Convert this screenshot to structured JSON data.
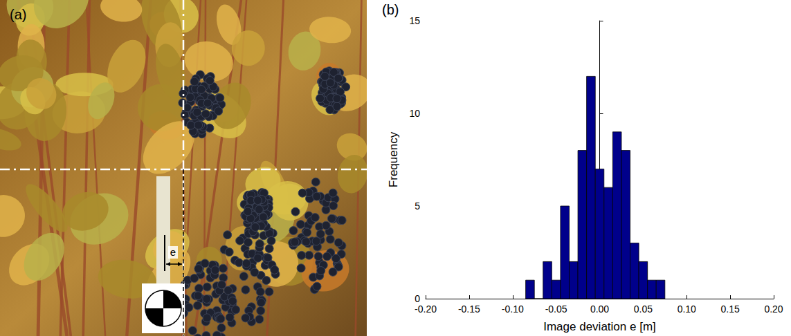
{
  "panel_a": {
    "label": "(a)",
    "annotation": "e"
  },
  "chart_data": {
    "type": "histogram",
    "label": "(b)",
    "xlabel": "Image deviation e [m]",
    "ylabel": "Frequency",
    "bins": [
      -0.085,
      -0.075,
      -0.065,
      -0.055,
      -0.045,
      -0.035,
      -0.025,
      -0.015,
      -0.005,
      0.005,
      0.015,
      0.025,
      0.035,
      0.045,
      0.055,
      0.065,
      0.075
    ],
    "counts": [
      1,
      0,
      2,
      1,
      5,
      2,
      8,
      12,
      7,
      6,
      9,
      8,
      3,
      2,
      1,
      1
    ],
    "color": "#00008b",
    "xlim": [
      -0.2,
      0.2
    ],
    "xticks": [
      {
        "value": -0.2,
        "label": "-0.20"
      },
      {
        "value": -0.15,
        "label": "-0.15"
      },
      {
        "value": -0.1,
        "label": "-0.10"
      },
      {
        "value": -0.05,
        "label": "-0.05"
      },
      {
        "value": 0,
        "label": "0.00"
      },
      {
        "value": 0.05,
        "label": "0.05"
      },
      {
        "value": 0.1,
        "label": "0.10"
      },
      {
        "value": 0.15,
        "label": "0.15"
      },
      {
        "value": 0.2,
        "label": "0.20"
      }
    ],
    "ylim": [
      0,
      15
    ],
    "yticks": [
      0,
      5,
      10,
      15
    ],
    "grid": false
  }
}
